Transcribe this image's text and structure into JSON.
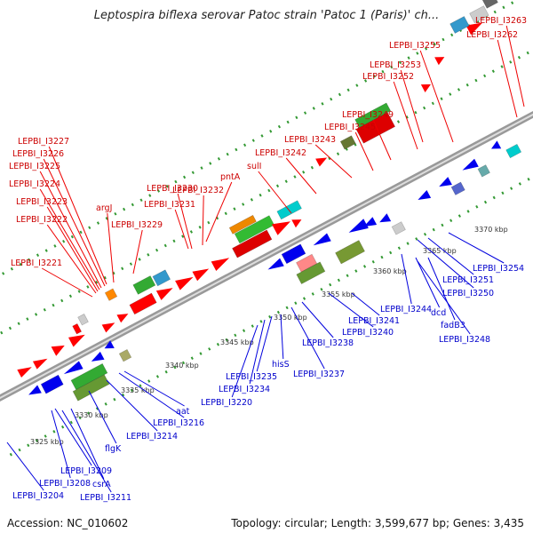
{
  "title": "Leptospira biflexa serovar Patoc strain 'Patoc 1 (Paris)' ch...",
  "footer": {
    "accession": "Accession: NC_010602",
    "stats": "Topology: circular; Length: 3,599,677 bp; Genes: 3,435"
  },
  "colors": {
    "forward_label": "#cc0000",
    "reverse_label": "#0000cc",
    "forward_cds": "#ff0000",
    "reverse_cds": "#0000ee",
    "backbone": "#999999",
    "tick": "#339933"
  },
  "scale_labels": [
    "3325 kbp",
    "3330 kbp",
    "3335 kbp",
    "3340 kbp",
    "3345 kbp",
    "3350 kbp",
    "3355 kbp",
    "3360 kbp",
    "3365 kbp",
    "3370 kbp"
  ],
  "forward_genes": [
    "LEPBI_I3263",
    "LEPBI_I3262",
    "LEPBI_I3255",
    "LEPBI_I3253",
    "LEPBI_I3252",
    "LEPBI_I3249",
    "LEPBI_I3245",
    "LEPBI_I3243",
    "LEPBI_I3242",
    "sulI",
    "pntA",
    "LEPBI_I3232",
    "LEPBI_I3230",
    "LEPBI_I3231",
    "LEPBI_I3227",
    "LEPBI_I3226",
    "LEPBI_I3225",
    "LEPBI_I3224",
    "LEPBI_I3223",
    "argJ",
    "LEPBI_I3229",
    "LEPBI_I3222",
    "LEPBI_I3221"
  ],
  "reverse_genes": [
    "LEPBI_I3254",
    "LEPBI_I3251",
    "LEPBI_I3250",
    "LEPBI_I3244",
    "dcd",
    "fadB3",
    "LEPBI_I3248",
    "LEPBI_I3241",
    "LEPBI_I3240",
    "LEPBI_I3238",
    "LEPBI_I3237",
    "hisS",
    "LEPBI_I3235",
    "LEPBI_I3234",
    "LEPBI_I3220",
    "aat",
    "LEPBI_I3216",
    "LEPBI_I3214",
    "flgK",
    "LEPBI_I3209",
    "LEPBI_I3208",
    "csrA",
    "LEPBI_I3211",
    "LEPBI_I3204"
  ]
}
